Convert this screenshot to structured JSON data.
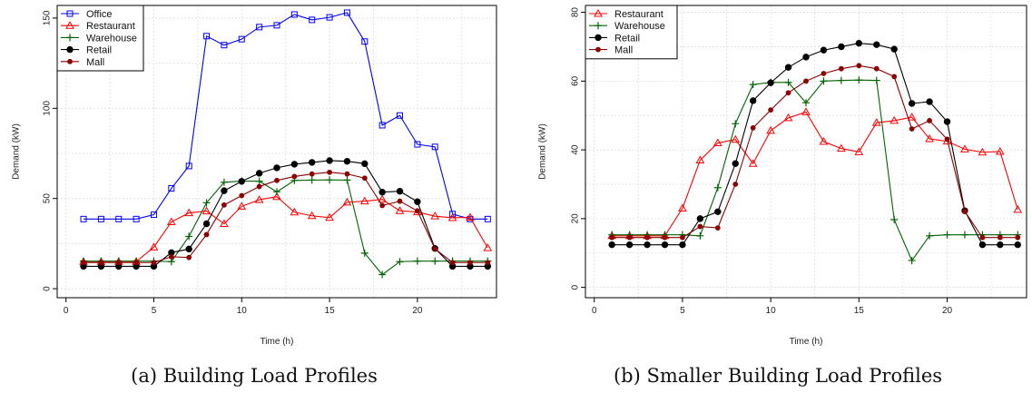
{
  "chart_data": [
    {
      "type": "line",
      "caption": "(a) Building Load Profiles",
      "xlabel": "Time (h)",
      "ylabel": "Demand (kW)",
      "xlim": [
        -0.5,
        24.5
      ],
      "ylim": [
        -5,
        157
      ],
      "xticks": [
        0,
        5,
        10,
        15,
        20
      ],
      "yticks": [
        0,
        50,
        100,
        150
      ],
      "grid": true,
      "legend_position": "top-left",
      "x": [
        1,
        2,
        3,
        4,
        5,
        6,
        7,
        8,
        9,
        10,
        11,
        12,
        13,
        14,
        15,
        16,
        17,
        18,
        19,
        20,
        21,
        22,
        23,
        24
      ],
      "series": [
        {
          "name": "Office",
          "color": "#0000ff",
          "marker": "square",
          "values": [
            38.6,
            38.6,
            38.6,
            38.6,
            41,
            55.6,
            68,
            140,
            135,
            138.3,
            145,
            146,
            152,
            149,
            150.4,
            153,
            137,
            90.6,
            96,
            80,
            78.6,
            41.4,
            38.6,
            38.6
          ]
        },
        {
          "name": "Restaurant",
          "color": "#ff0000",
          "marker": "triangle",
          "values": [
            15,
            15,
            15,
            15,
            23,
            37,
            42,
            43,
            36,
            45.6,
            49.3,
            51,
            42.4,
            40.4,
            39.4,
            47.9,
            48.5,
            49.5,
            43.2,
            42.5,
            40.2,
            39.3,
            39.5,
            22.6
          ]
        },
        {
          "name": "Warehouse",
          "color": "#006400",
          "marker": "plus",
          "values": [
            15.3,
            15.3,
            15.3,
            15.3,
            15.3,
            15,
            29,
            47.6,
            59,
            59.6,
            59.6,
            53.7,
            60,
            60.2,
            60.3,
            60.2,
            19.7,
            7.8,
            15,
            15.3,
            15.3,
            15.3,
            15.3,
            15.3
          ]
        },
        {
          "name": "Retail",
          "color": "#000000",
          "marker": "circle",
          "values": [
            12.4,
            12.4,
            12.4,
            12.4,
            12.4,
            20,
            22,
            36,
            54.3,
            59.5,
            64,
            67,
            69,
            70,
            71,
            70.6,
            69.3,
            53.5,
            54,
            48.2,
            22.3,
            12.4,
            12.4,
            12.4
          ]
        },
        {
          "name": "Mall",
          "color": "#8b0000",
          "marker": "dot",
          "values": [
            14.5,
            14.5,
            14.5,
            14.5,
            14.5,
            17.7,
            17.3,
            30,
            46.4,
            51.6,
            56.6,
            60,
            62.2,
            63.6,
            64.5,
            63.6,
            61.3,
            46.1,
            48.5,
            43.1,
            22.1,
            14.5,
            14.5,
            14.5
          ]
        }
      ]
    },
    {
      "type": "line",
      "caption": "(b) Smaller Building Load Profiles",
      "xlabel": "Time (h)",
      "ylabel": "Demand (kW)",
      "xlim": [
        -0.5,
        24.5
      ],
      "ylim": [
        -3,
        82
      ],
      "xticks": [
        0,
        5,
        10,
        15,
        20
      ],
      "yticks": [
        0,
        20,
        40,
        60,
        80
      ],
      "grid": true,
      "legend_position": "top-left",
      "x": [
        1,
        2,
        3,
        4,
        5,
        6,
        7,
        8,
        9,
        10,
        11,
        12,
        13,
        14,
        15,
        16,
        17,
        18,
        19,
        20,
        21,
        22,
        23,
        24
      ],
      "series": [
        {
          "name": "Restaurant",
          "color": "#ff0000",
          "marker": "triangle",
          "values": [
            15,
            15,
            15,
            15,
            23,
            37,
            42,
            43,
            36,
            45.6,
            49.3,
            51,
            42.4,
            40.4,
            39.4,
            47.9,
            48.5,
            49.5,
            43.2,
            42.5,
            40.2,
            39.3,
            39.5,
            22.6
          ]
        },
        {
          "name": "Warehouse",
          "color": "#006400",
          "marker": "plus",
          "values": [
            15.3,
            15.3,
            15.3,
            15.3,
            15.3,
            15,
            29,
            47.6,
            59,
            59.6,
            59.6,
            53.7,
            60,
            60.2,
            60.3,
            60.2,
            19.7,
            7.8,
            15,
            15.3,
            15.3,
            15.3,
            15.3,
            15.3
          ]
        },
        {
          "name": "Retail",
          "color": "#000000",
          "marker": "circle",
          "values": [
            12.4,
            12.4,
            12.4,
            12.4,
            12.4,
            20,
            22,
            36,
            54.3,
            59.5,
            64,
            67,
            69,
            70,
            71,
            70.6,
            69.3,
            53.5,
            54,
            48.2,
            22.3,
            12.4,
            12.4,
            12.4
          ]
        },
        {
          "name": "Mall",
          "color": "#8b0000",
          "marker": "dot",
          "values": [
            14.5,
            14.5,
            14.5,
            14.5,
            14.5,
            17.7,
            17.3,
            30,
            46.4,
            51.6,
            56.6,
            60,
            62.2,
            63.6,
            64.5,
            63.6,
            61.3,
            46.1,
            48.5,
            43.1,
            22.1,
            14.5,
            14.5,
            14.5
          ]
        }
      ]
    }
  ]
}
